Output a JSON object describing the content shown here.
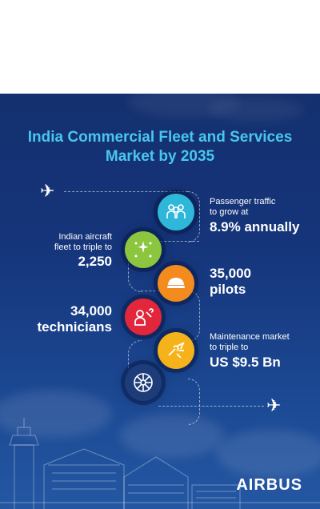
{
  "title": {
    "line1": "India Commercial Fleet and Services",
    "line2": "Market by 2035"
  },
  "stats": {
    "passenger": {
      "label_line1": "Passenger traffic",
      "label_line2": "to grow at",
      "value": "8.9% annually"
    },
    "fleet": {
      "label_line1": "Indian aircraft",
      "label_line2": "fleet to triple to",
      "value": "2,250"
    },
    "pilots": {
      "value": "35,000",
      "label": "pilots"
    },
    "technicians": {
      "value": "34,000",
      "label": "technicians"
    },
    "maintenance": {
      "label_line1": "Maintenance market",
      "label_line2": "to triple to",
      "value": "US $9.5 Bn"
    }
  },
  "colors": {
    "background_top": "#14306e",
    "title": "#49c6ee",
    "passenger_circle": "#2fb7da",
    "fleet_circle": "#8cc63f",
    "pilots_circle": "#f38b1f",
    "technicians_circle": "#e2263b",
    "maintenance_circle": "#f6b21a",
    "engine_circle": "#1e3c7a"
  },
  "icons": {
    "passenger": "people-icon",
    "fleet": "aircraft-fleet-icon",
    "pilots": "pilot-cap-icon",
    "technicians": "technician-wrench-icon",
    "maintenance": "maintenance-tools-icon",
    "engine": "engine-icon"
  },
  "brand": {
    "logo": "AIRBUS"
  }
}
